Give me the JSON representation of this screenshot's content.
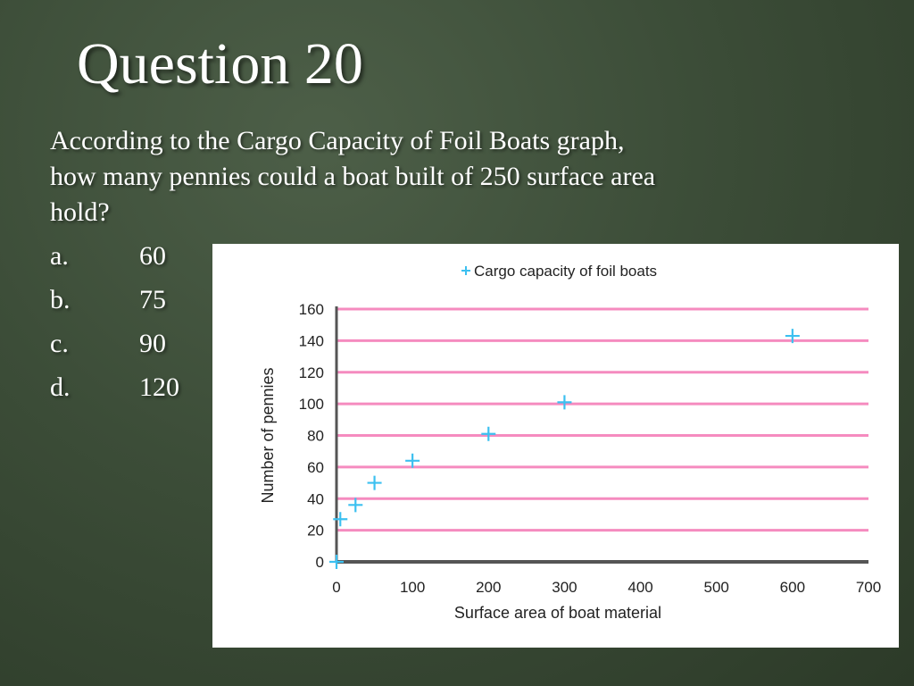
{
  "slide": {
    "title": "Question 20",
    "question_lines": [
      "According to the Cargo Capacity of Foil Boats graph,",
      "how many pennies could a boat built of 250   surface area",
      "hold?"
    ]
  },
  "options": [
    {
      "letter": "a.",
      "value": "60"
    },
    {
      "letter": "b.",
      "value": "75"
    },
    {
      "letter": "c.",
      "value": "90"
    },
    {
      "letter": "d.",
      "value": "120"
    }
  ],
  "chart_data": {
    "type": "scatter",
    "title": "Cargo capacity of foil boats",
    "xlabel": "Surface area of boat material",
    "ylabel": "Number of pennies",
    "xlim": [
      0,
      700
    ],
    "ylim": [
      0,
      160
    ],
    "xticks": [
      0,
      100,
      200,
      300,
      400,
      500,
      600,
      700
    ],
    "yticks": [
      0,
      20,
      40,
      60,
      80,
      100,
      120,
      140,
      160
    ],
    "grid": "horizontal",
    "legend": "top-center",
    "colors": {
      "marker": "#3cc0f0",
      "grid": "#f58bbf",
      "axis": "#555555"
    },
    "series": [
      {
        "name": "Cargo capacity of foil boats",
        "x": [
          0,
          5,
          25,
          50,
          100,
          200,
          300,
          600
        ],
        "y": [
          0,
          27,
          36,
          50,
          64,
          81,
          101,
          143
        ]
      }
    ]
  }
}
